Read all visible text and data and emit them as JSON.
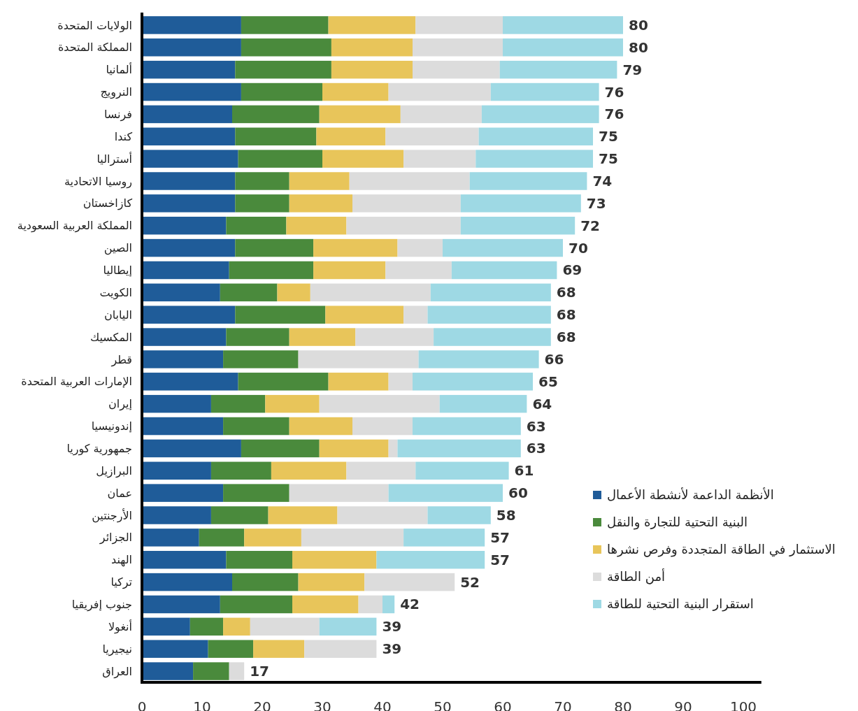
{
  "chart_data": {
    "type": "bar",
    "orientation": "horizontal",
    "stacked": true,
    "categories": [
      "الولايات المتحدة",
      "المملكة المتحدة",
      "ألمانيا",
      "النرويج",
      "فرنسا",
      "كندا",
      "أستراليا",
      "روسيا الاتحادية",
      "كازاخستان",
      "المملكة العربية السعودية",
      "الصين",
      "إيطاليا",
      "الكويت",
      "اليابان",
      "المكسيك",
      "قطر",
      "الإمارات العربية المتحدة",
      "إيران",
      "إندونيسيا",
      "جمهورية كوريا",
      "البرازيل",
      "عمان",
      "الأرجنتين",
      "الجزائر",
      "الهند",
      "تركيا",
      "جنوب إفريقيا",
      "أنغولا",
      "نيجيريا",
      "العراق"
    ],
    "series": [
      {
        "name": "الأنظمة الداعمة لأنشطة الأعمال",
        "color": "#1f5c99",
        "values": [
          16.5,
          16.5,
          15.5,
          16.5,
          15,
          15.5,
          16,
          15.5,
          15.5,
          14,
          15.5,
          14.5,
          13,
          15.5,
          14,
          13.5,
          16,
          11.5,
          13.5,
          16.5,
          11.5,
          13.5,
          11.5,
          9.5,
          14,
          15,
          13,
          8,
          11,
          8.5
        ]
      },
      {
        "name": "البنية التحتية للتجارة والنقل",
        "color": "#4a8a3c",
        "values": [
          14.5,
          15,
          16,
          13.5,
          14.5,
          13.5,
          14,
          9,
          9,
          10,
          13,
          14,
          9.5,
          15,
          10.5,
          12.5,
          15,
          9,
          11,
          13,
          10,
          11,
          9.5,
          7.5,
          11,
          11,
          12,
          5.5,
          7.5,
          6
        ]
      },
      {
        "name": "الاستثمار في الطاقة المتجددة وفرص نشرها",
        "color": "#e8c55a",
        "values": [
          14.5,
          13.5,
          13.5,
          11,
          13.5,
          11.5,
          13.5,
          10,
          10.5,
          10,
          14,
          12,
          5.5,
          13,
          11,
          0,
          10,
          9,
          10.5,
          11.5,
          12.5,
          0,
          11.5,
          9.5,
          14,
          11,
          11,
          4.5,
          8.5,
          0
        ]
      },
      {
        "name": "أمن الطاقة",
        "color": "#dcdcdc",
        "values": [
          14.5,
          15,
          14.5,
          17,
          13.5,
          15.5,
          12,
          20,
          18,
          19,
          7.5,
          11,
          20,
          4,
          13,
          20,
          4,
          20,
          10,
          1.5,
          11.5,
          16.5,
          15,
          17,
          0,
          15,
          4,
          11.5,
          12,
          2.5
        ]
      },
      {
        "name": "استقرار البنية التحتية للطاقة",
        "color": "#9ed9e4",
        "values": [
          20,
          20,
          19.5,
          18,
          19.5,
          19,
          19.5,
          19.5,
          20,
          19,
          20,
          17.5,
          20,
          20.5,
          19.5,
          20,
          20,
          14.5,
          18,
          20.5,
          15.5,
          19,
          10.5,
          13.5,
          18,
          0,
          2,
          9.5,
          0,
          0
        ]
      }
    ],
    "totals": [
      "80",
      "80",
      "79",
      "76",
      "76",
      "75",
      "75",
      "74",
      "73",
      "72",
      "70",
      "69",
      "68",
      "68",
      "68",
      "66",
      "65",
      "64",
      "63",
      "63",
      "61",
      "60",
      "58",
      "57",
      "57",
      "52",
      "42",
      "39",
      "39",
      "17"
    ],
    "xlim": [
      0,
      103
    ],
    "xticks": [
      0,
      10,
      20,
      30,
      40,
      50,
      60,
      70,
      80,
      90,
      100
    ],
    "grid": false,
    "legend": "bottom right"
  }
}
